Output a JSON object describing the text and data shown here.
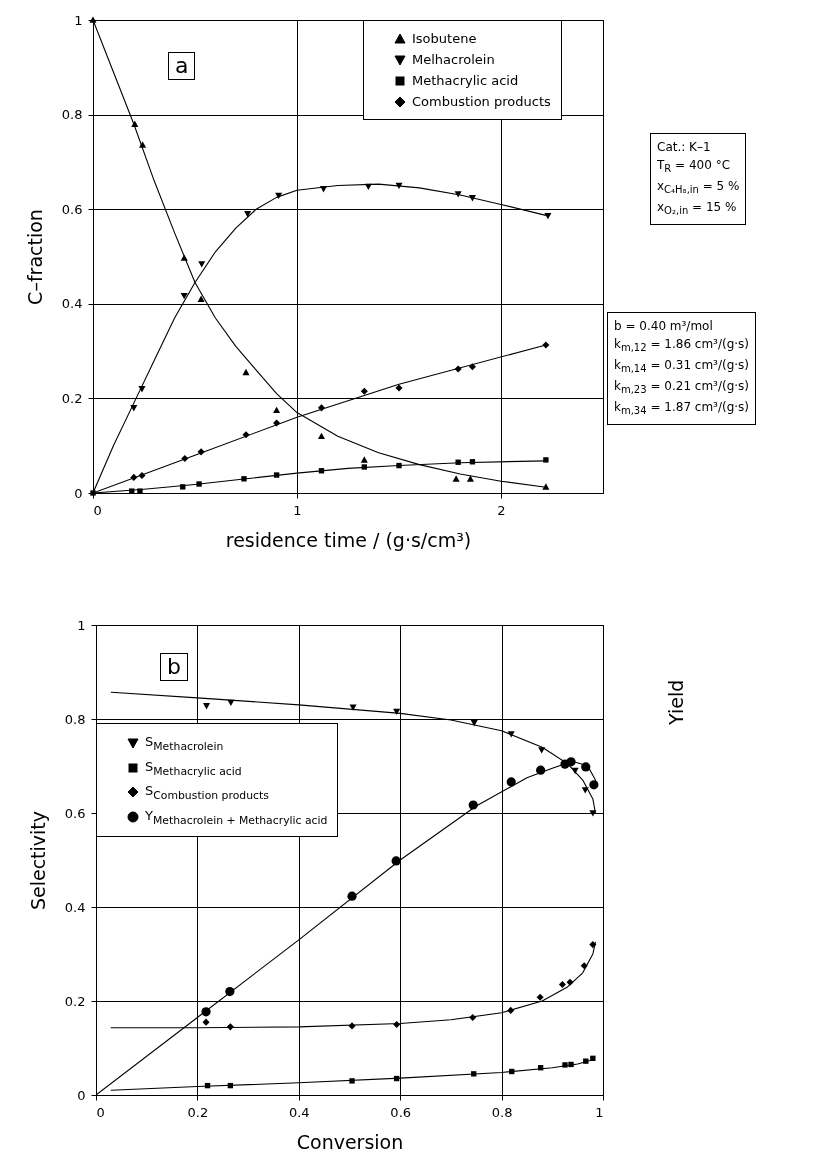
{
  "chart_data": [
    {
      "type": "scatter",
      "xlabel": "residence time / (g·s/cm³)",
      "ylabel": "C–fraction",
      "xlim": [
        0,
        2.5
      ],
      "ylim": [
        0,
        1
      ],
      "xticks": [
        0,
        1,
        2
      ],
      "yticks": [
        0,
        0.2,
        0.4,
        0.6,
        0.8,
        1
      ],
      "grid": true,
      "legend": "top right",
      "annotations": [
        "a",
        "Cat.: K–1",
        "T$_{R}$ = 400 °C",
        "x$_{C₄H₈,in}$ = 5 %",
        "x$_{O₂,in}$ = 15 %",
        "b = 0.40 m³/mol",
        "k$_{m,12}$ = 1.86 cm³/(g·s)",
        "k$_{m,14}$ = 0.31 cm³/(g·s)",
        "k$_{m,23}$ = 0.21 cm³/(g·s)",
        "k$_{m,34}$ = 1.87 cm³/(g·s)"
      ],
      "series": [
        {
          "type": "line",
          "color": "#000000",
          "x": [
            0,
            0.1,
            0.2,
            0.3,
            0.4,
            0.5,
            0.6,
            0.7,
            0.8,
            0.9,
            1.0,
            1.2,
            1.4,
            1.6,
            1.8,
            2.0,
            2.22
          ],
          "values": [
            1,
            0.89,
            0.78,
            0.66,
            0.55,
            0.445,
            0.37,
            0.31,
            0.26,
            0.21,
            0.17,
            0.12,
            0.085,
            0.06,
            0.04,
            0.025,
            0.012
          ]
        },
        {
          "type": "line",
          "color": "#000000",
          "x": [
            0,
            0.1,
            0.2,
            0.3,
            0.4,
            0.5,
            0.6,
            0.7,
            0.8,
            0.9,
            1.0,
            1.2,
            1.4,
            1.6,
            1.8,
            2.0,
            2.22
          ],
          "values": [
            0,
            0.1,
            0.19,
            0.28,
            0.37,
            0.445,
            0.51,
            0.56,
            0.6,
            0.625,
            0.64,
            0.65,
            0.653,
            0.645,
            0.63,
            0.61,
            0.587
          ]
        },
        {
          "type": "line",
          "color": "#000000",
          "x": [
            0,
            0.25,
            0.5,
            0.75,
            1.0,
            1.25,
            1.5,
            1.8,
            2.22
          ],
          "values": [
            0,
            0.008,
            0.018,
            0.03,
            0.042,
            0.052,
            0.058,
            0.064,
            0.068
          ]
        },
        {
          "type": "line",
          "color": "#000000",
          "x": [
            0,
            0.5,
            1.0,
            1.5,
            2.22
          ],
          "values": [
            0,
            0.08,
            0.16,
            0.23,
            0.313
          ]
        },
        {
          "name": "Isobutene",
          "type": "scatter",
          "marker": "triangle",
          "color": "#000000",
          "x": [
            0,
            0.205,
            0.243,
            0.447,
            0.53,
            0.75,
            0.9,
            1.12,
            1.33,
            1.5,
            1.78,
            1.85,
            2.22
          ],
          "values": [
            1,
            0.78,
            0.736,
            0.497,
            0.41,
            0.255,
            0.175,
            0.12,
            0.07,
            null,
            0.03,
            0.03,
            0.013
          ]
        },
        {
          "name": "Melhacrolein",
          "type": "scatter",
          "marker": "triangle-down",
          "color": "#000000",
          "x": [
            0.2,
            0.24,
            0.447,
            0.533,
            0.758,
            0.91,
            1.13,
            1.35,
            1.5,
            1.79,
            1.86,
            2.23
          ],
          "values": [
            0.18,
            0.22,
            0.417,
            0.484,
            0.59,
            0.629,
            0.643,
            0.648,
            0.65,
            0.632,
            0.624,
            0.586
          ]
        },
        {
          "name": "Methacrylic acid",
          "type": "scatter",
          "marker": "square",
          "color": "#000000",
          "x": [
            0,
            0.19,
            0.23,
            0.44,
            0.52,
            0.74,
            0.9,
            1.12,
            1.33,
            1.5,
            1.79,
            1.86,
            2.22
          ],
          "values": [
            0,
            0.004,
            0.004,
            0.013,
            0.019,
            0.03,
            0.038,
            0.047,
            0.055,
            0.058,
            0.065,
            0.066,
            0.07
          ]
        },
        {
          "name": "Combustion products",
          "type": "scatter",
          "marker": "diamond",
          "color": "#000000",
          "x": [
            0.2,
            0.24,
            0.45,
            0.53,
            0.75,
            0.9,
            1.12,
            1.33,
            1.5,
            1.79,
            1.86,
            2.22
          ],
          "values": [
            0.033,
            0.037,
            0.073,
            0.087,
            0.123,
            0.148,
            0.18,
            0.215,
            0.222,
            0.262,
            0.267,
            0.313
          ]
        }
      ]
    },
    {
      "type": "scatter",
      "xlabel": "Conversion",
      "ylabel": "Selectivity",
      "y2label": "Yield",
      "xlim": [
        0,
        1
      ],
      "ylim": [
        0,
        1
      ],
      "xticks": [
        0,
        0.2,
        0.4,
        0.6,
        0.8,
        1
      ],
      "yticks": [
        0,
        0.2,
        0.4,
        0.6,
        0.8,
        1
      ],
      "grid": true,
      "legend": "left",
      "annotations": [
        "b"
      ],
      "series": [
        {
          "type": "line",
          "color": "#000000",
          "x": [
            0.03,
            0.2,
            0.4,
            0.6,
            0.7,
            0.8,
            0.88,
            0.93,
            0.96,
            0.98,
            0.985
          ],
          "values": [
            0.857,
            0.845,
            0.83,
            0.812,
            0.798,
            0.775,
            0.74,
            0.705,
            0.67,
            0.63,
            0.6
          ]
        },
        {
          "type": "line",
          "color": "#000000",
          "x": [
            0.03,
            0.2,
            0.4,
            0.6,
            0.8,
            0.9,
            0.95,
            0.98
          ],
          "values": [
            0.01,
            0.018,
            0.026,
            0.036,
            0.048,
            0.058,
            0.066,
            0.075
          ]
        },
        {
          "type": "line",
          "color": "#000000",
          "x": [
            0.03,
            0.2,
            0.4,
            0.6,
            0.7,
            0.8,
            0.88,
            0.93,
            0.96,
            0.98,
            0.985
          ],
          "values": [
            0.143,
            0.143,
            0.145,
            0.152,
            0.16,
            0.175,
            0.2,
            0.23,
            0.26,
            0.3,
            0.325
          ]
        },
        {
          "type": "line",
          "color": "#000000",
          "x": [
            0,
            0.2,
            0.4,
            0.6,
            0.75,
            0.85,
            0.9,
            0.94,
            0.97,
            0.985,
            0.988
          ],
          "values": [
            0,
            0.165,
            0.33,
            0.5,
            0.615,
            0.675,
            0.695,
            0.71,
            0.7,
            0.67,
            0.66
          ]
        },
        {
          "name": "S$_{Methacrolein}$",
          "type": "scatter",
          "marker": "triangle-down",
          "color": "#000000",
          "x": [
            0.218,
            0.266,
            0.507,
            0.593,
            0.746,
            0.819,
            0.879,
            0.945,
            0.965,
            0.98
          ],
          "values": [
            0.828,
            0.835,
            0.825,
            0.816,
            0.792,
            0.768,
            0.734,
            0.69,
            0.649,
            0.6
          ]
        },
        {
          "name": "S$_{Methacrylic acid}$",
          "type": "scatter",
          "marker": "square",
          "color": "#000000",
          "x": [
            0.22,
            0.265,
            0.505,
            0.593,
            0.745,
            0.82,
            0.877,
            0.925,
            0.937,
            0.966,
            0.98
          ],
          "values": [
            0.02,
            0.02,
            0.03,
            0.035,
            0.045,
            0.05,
            0.058,
            0.064,
            0.065,
            0.072,
            0.078
          ]
        },
        {
          "name": "S$_{Combustion products}$",
          "type": "scatter",
          "marker": "diamond",
          "color": "#000000",
          "x": [
            0.217,
            0.265,
            0.505,
            0.593,
            0.743,
            0.818,
            0.876,
            0.92,
            0.935,
            0.963,
            0.98
          ],
          "values": [
            0.155,
            0.145,
            0.147,
            0.15,
            0.165,
            0.18,
            0.208,
            0.235,
            0.24,
            0.275,
            0.32
          ]
        },
        {
          "name": "Y$_{Methacrolein + Methacrylic acid}$",
          "type": "scatter",
          "marker": "circle",
          "color": "#000000",
          "x": [
            0.217,
            0.264,
            0.505,
            0.592,
            0.744,
            0.819,
            0.877,
            0.925,
            0.937,
            0.966,
            0.982
          ],
          "values": [
            0.177,
            0.22,
            0.423,
            0.498,
            0.617,
            0.666,
            0.691,
            0.704,
            0.709,
            0.698,
            0.66
          ]
        }
      ]
    }
  ]
}
